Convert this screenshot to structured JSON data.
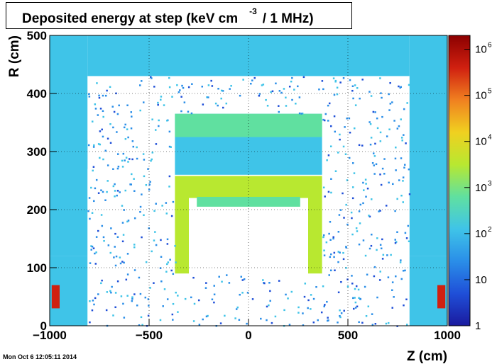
{
  "chart_data": {
    "type": "heatmap",
    "title": "Deposited energy at step (keV cm",
    "title_exponent": "-3",
    "title_suffix": "/ 1 MHz)",
    "xlabel": "Z (cm)",
    "ylabel": "R (cm)",
    "xlim": [
      -1000,
      1000
    ],
    "ylim": [
      0,
      500
    ],
    "x_ticks": [
      -1000,
      -500,
      0,
      500,
      1000
    ],
    "x_tick_labels": [
      "−1000",
      "−500",
      "0",
      "500",
      "1000"
    ],
    "y_ticks": [
      0,
      100,
      200,
      300,
      400,
      500
    ],
    "y_tick_labels": [
      "0",
      "100",
      "200",
      "300",
      "400",
      "500"
    ],
    "color_scale": "log",
    "zlim": [
      1,
      2000000
    ],
    "z_ticks": [
      {
        "value": 1,
        "base": "1",
        "exp": ""
      },
      {
        "value": 10,
        "base": "10",
        "exp": ""
      },
      {
        "value": 100,
        "base": "10",
        "exp": "2"
      },
      {
        "value": 1000,
        "base": "10",
        "exp": "3"
      },
      {
        "value": 10000,
        "base": "10",
        "exp": "4"
      },
      {
        "value": 100000,
        "base": "10",
        "exp": "5"
      },
      {
        "value": 1000000,
        "base": "10",
        "exp": "6"
      }
    ],
    "grid": true,
    "colormap": [
      "#1a1a9e",
      "#1f4fd8",
      "#2a8ee8",
      "#3fc4e8",
      "#60e0a0",
      "#b8e830",
      "#f0d020",
      "#f08020",
      "#d02010",
      "#8b0000"
    ],
    "regions": [
      {
        "z": [
          -1000,
          -810
        ],
        "r": [
          120,
          500
        ],
        "value": 150
      },
      {
        "z": [
          810,
          1000
        ],
        "r": [
          120,
          500
        ],
        "value": 150
      },
      {
        "z": [
          -1000,
          -810
        ],
        "r": [
          270,
          320
        ],
        "value": 300
      },
      {
        "z": [
          810,
          1000
        ],
        "r": [
          270,
          320
        ],
        "value": 300
      },
      {
        "z": [
          -1000,
          -810
        ],
        "r": [
          0,
          120
        ],
        "value": 80
      },
      {
        "z": [
          810,
          1000
        ],
        "r": [
          0,
          120
        ],
        "value": 80
      },
      {
        "z": [
          -810,
          810
        ],
        "r": [
          430,
          500
        ],
        "value": 90
      },
      {
        "z": [
          -370,
          370
        ],
        "r": [
          260,
          365
        ],
        "value": 250
      },
      {
        "z": [
          -370,
          370
        ],
        "r": [
          325,
          365
        ],
        "value": 400
      },
      {
        "z": [
          -300,
          300
        ],
        "r": [
          220,
          258
        ],
        "value": 5000
      },
      {
        "z": [
          -370,
          -300
        ],
        "r": [
          90,
          258
        ],
        "value": 1500
      },
      {
        "z": [
          300,
          370
        ],
        "r": [
          90,
          258
        ],
        "value": 1500
      },
      {
        "z": [
          -260,
          260
        ],
        "r": [
          205,
          222
        ],
        "value": 800
      },
      {
        "z": [
          -990,
          -950
        ],
        "r": [
          30,
          70
        ],
        "value": 200000
      },
      {
        "z": [
          950,
          990
        ],
        "r": [
          30,
          70
        ],
        "value": 200000
      }
    ]
  },
  "timestamp": "Mon Oct  6 12:05:11 2014"
}
